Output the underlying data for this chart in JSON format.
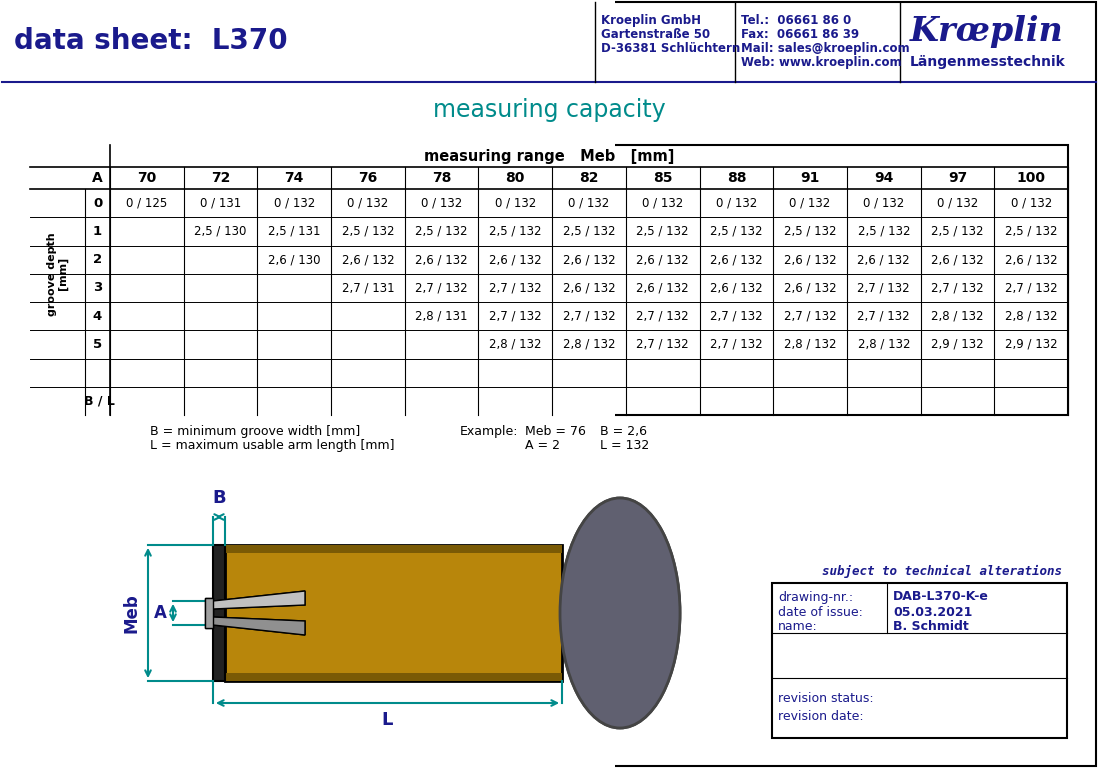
{
  "title": "data sheet:  L370",
  "company_name": "Kroeplin GmbH",
  "company_addr1": "Gartenstraße 50",
  "company_addr2": "D-36381 Schlüchtern",
  "tel": "Tel.:  06661 86 0",
  "fax": "Fax:  06661 86 39",
  "mail": "Mail: sales@kroeplin.com",
  "web": "Web: www.kroeplin.com",
  "logo_text1": "Krœplin",
  "logo_text2": "Längenmesstechnik",
  "section_title": "measuring capacity",
  "table_header_row1": "measuring range   Meb   [mm]",
  "col_headers": [
    "70",
    "72",
    "74",
    "76",
    "78",
    "80",
    "82",
    "85",
    "88",
    "91",
    "94",
    "97",
    "100"
  ],
  "row_labels_A": [
    "0",
    "1",
    "2",
    "3",
    "4",
    "5"
  ],
  "table_data": [
    [
      "0 / 125",
      "0 / 131",
      "0 / 132",
      "0 / 132",
      "0 / 132",
      "0 / 132",
      "0 / 132",
      "0 / 132",
      "0 / 132",
      "0 / 132",
      "0 / 132",
      "0 / 132",
      "0 / 132"
    ],
    [
      "",
      "2,5 / 130",
      "2,5 / 131",
      "2,5 / 132",
      "2,5 / 132",
      "2,5 / 132",
      "2,5 / 132",
      "2,5 / 132",
      "2,5 / 132",
      "2,5 / 132",
      "2,5 / 132",
      "2,5 / 132",
      "2,5 / 132"
    ],
    [
      "",
      "",
      "2,6 / 130",
      "2,6 / 132",
      "2,6 / 132",
      "2,6 / 132",
      "2,6 / 132",
      "2,6 / 132",
      "2,6 / 132",
      "2,6 / 132",
      "2,6 / 132",
      "2,6 / 132",
      "2,6 / 132"
    ],
    [
      "",
      "",
      "",
      "2,7 / 131",
      "2,7 / 132",
      "2,7 / 132",
      "2,6 / 132",
      "2,6 / 132",
      "2,6 / 132",
      "2,6 / 132",
      "2,7 / 132",
      "2,7 / 132",
      "2,7 / 132"
    ],
    [
      "",
      "",
      "",
      "",
      "2,8 / 131",
      "2,7 / 132",
      "2,7 / 132",
      "2,7 / 132",
      "2,7 / 132",
      "2,7 / 132",
      "2,7 / 132",
      "2,8 / 132",
      "2,8 / 132"
    ],
    [
      "",
      "",
      "",
      "",
      "",
      "2,8 / 132",
      "2,8 / 132",
      "2,7 / 132",
      "2,7 / 132",
      "2,8 / 132",
      "2,8 / 132",
      "2,9 / 132",
      "2,9 / 132"
    ]
  ],
  "note_b": "B = minimum groove width [mm]",
  "note_l": "L = maximum usable arm length [mm]",
  "example_label": "Example:",
  "example_meb": "Meb = 76",
  "example_b": "B = 2,6",
  "example_a": "A = 2",
  "example_l": "L = 132",
  "subject_text": "subject to technical alterations",
  "drawing_nr_label": "drawing-nr.:",
  "drawing_nr_val": "DAB-L370-K-e",
  "date_label": "date of issue:",
  "date_val": "05.03.2021",
  "name_label": "name:",
  "name_val": "B. Schmidt",
  "rev_status_label": "revision status:",
  "rev_date_label": "revision date:",
  "dark_blue": "#1a1a8c",
  "teal": "#008B8B",
  "gold": "#B8860B",
  "dark_gold": "#7a5a05",
  "arm_light": "#C0C0C0",
  "arm_dark": "#909090",
  "dial_color": "#606070",
  "black": "#000000",
  "bg": "#ffffff"
}
